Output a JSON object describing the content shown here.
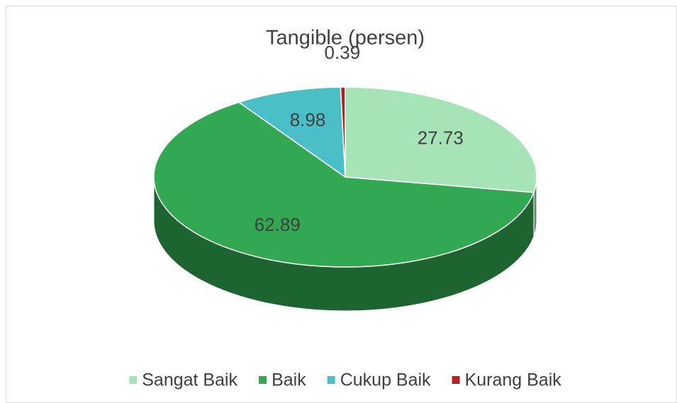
{
  "chart_data": {
    "type": "pie",
    "title": "Tangible (persen)",
    "categories": [
      "Sangat Baik",
      "Baik",
      "Cukup Baik",
      "Kurang Baik"
    ],
    "values": [
      27.73,
      62.89,
      8.98,
      0.39
    ],
    "colors": [
      "#a6e3b7",
      "#33a852",
      "#4bbfc8",
      "#b22222"
    ],
    "legend": "bottom"
  }
}
